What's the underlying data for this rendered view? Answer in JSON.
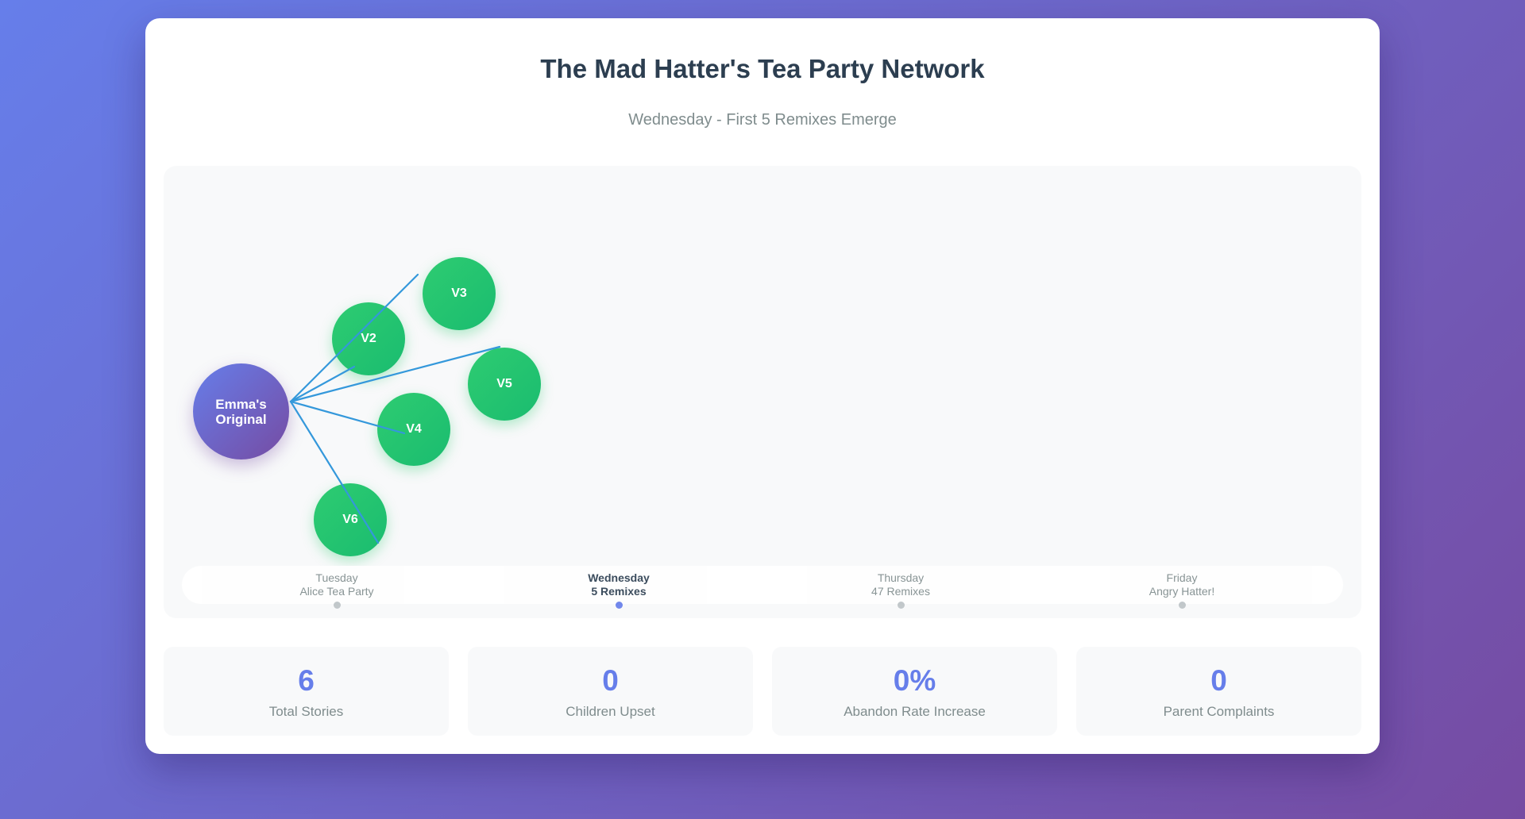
{
  "header": {
    "title": "The Mad Hatter's Tea Party Network",
    "subtitle": "Wednesday - First 5 Remixes Emerge"
  },
  "network": {
    "origin": {
      "label": "Emma's\nOriginal"
    },
    "remixes": [
      {
        "label": "V2"
      },
      {
        "label": "V3"
      },
      {
        "label": "V5"
      },
      {
        "label": "V4"
      },
      {
        "label": "V6"
      }
    ],
    "colors": {
      "origin": "#764ba2",
      "remix": "#2ecc71",
      "edge": "#3498db"
    }
  },
  "timeline": [
    {
      "day": "Tuesday",
      "detail": "Alice Tea Party",
      "active": false
    },
    {
      "day": "Wednesday",
      "detail": "5 Remixes",
      "active": true
    },
    {
      "day": "Thursday",
      "detail": "47 Remixes",
      "active": false
    },
    {
      "day": "Friday",
      "detail": "Angry Hatter!",
      "active": false
    }
  ],
  "stats": [
    {
      "value": "6",
      "label": "Total Stories"
    },
    {
      "value": "0",
      "label": "Children Upset"
    },
    {
      "value": "0%",
      "label": "Abandon Rate Increase"
    },
    {
      "value": "0",
      "label": "Parent Complaints"
    }
  ]
}
